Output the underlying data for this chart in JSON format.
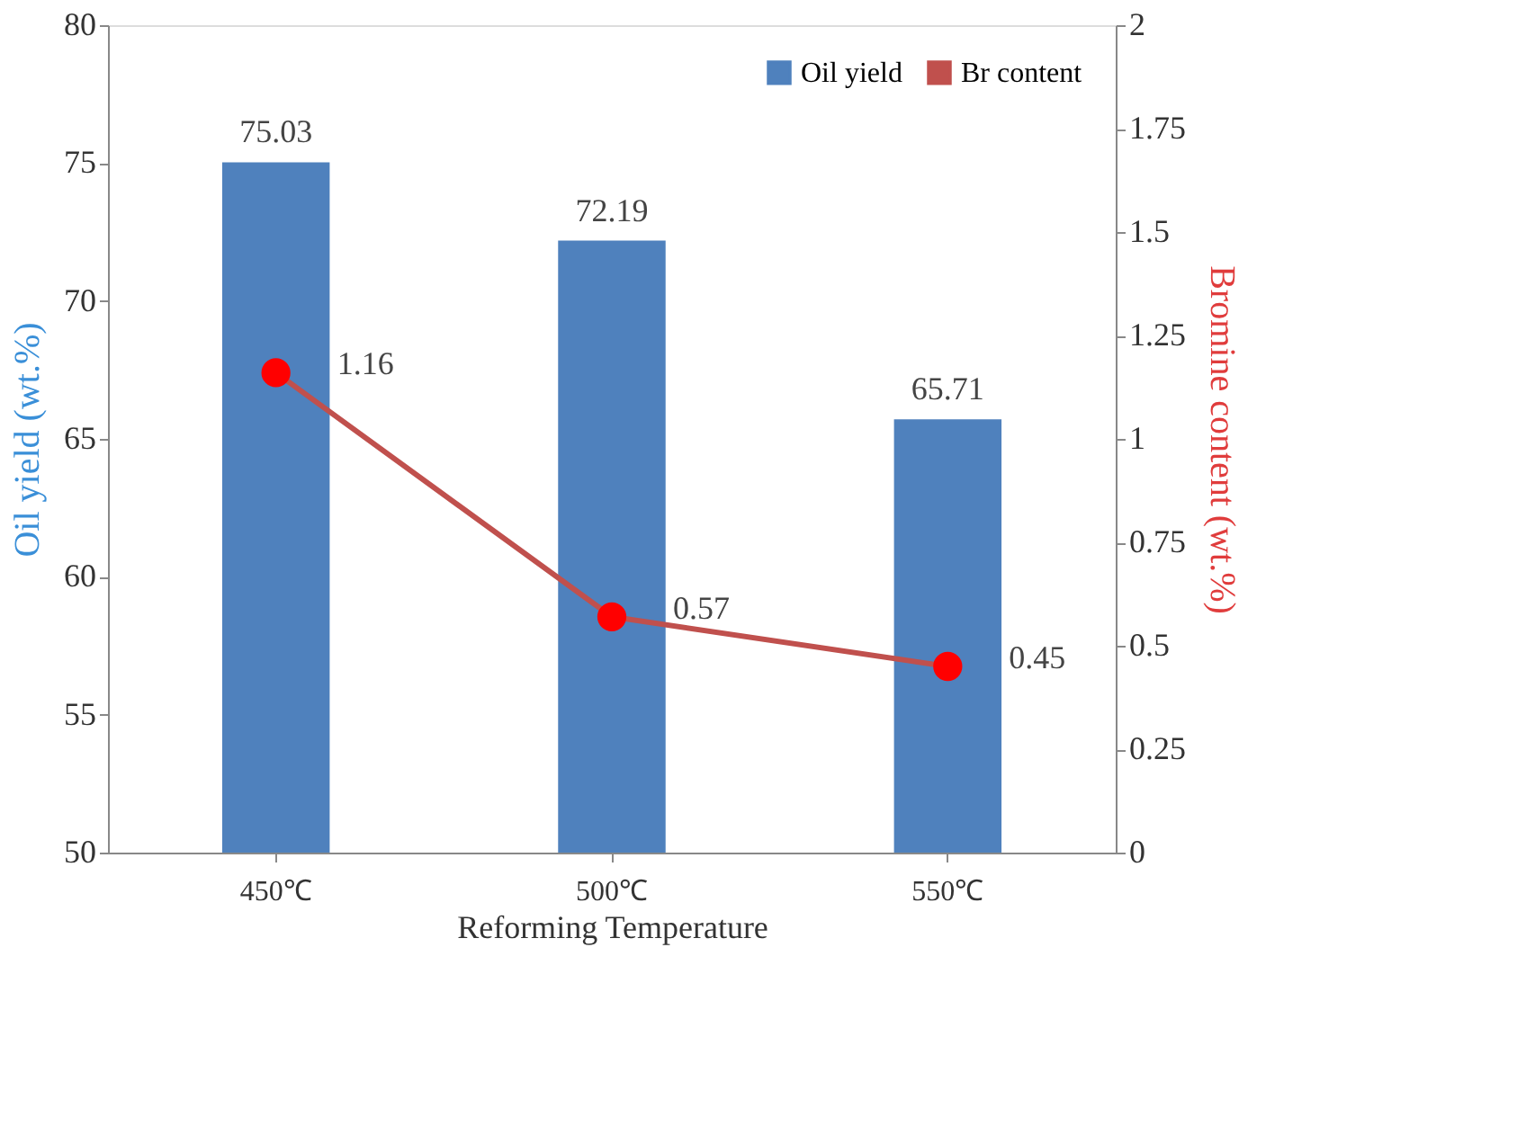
{
  "chart_data": {
    "type": "bar",
    "xlabel": "Reforming Temperature",
    "ylabel": "Oil yield (wt.%)",
    "y2label": "Bromine content (wt.%)",
    "categories": [
      "450℃",
      "500℃",
      "550℃"
    ],
    "series": [
      {
        "name": "Oil yield",
        "color": "#4f81bd",
        "values": [
          75.03,
          72.19,
          65.71
        ]
      },
      {
        "name": "Br content",
        "type": "line",
        "axis": "y2",
        "color": "#c0504d",
        "values": [
          1.16,
          0.57,
          0.45
        ]
      }
    ],
    "ylim": [
      50,
      80
    ],
    "yticks": [
      50,
      55,
      60,
      65,
      70,
      75,
      80
    ],
    "y2lim": [
      0,
      2
    ],
    "y2ticks": [
      0,
      0.25,
      0.5,
      0.75,
      1,
      1.25,
      1.5,
      1.75,
      2
    ],
    "data_labels": true,
    "legend": "top right",
    "grid": false,
    "marker": "circle",
    "line_style": "solid"
  }
}
